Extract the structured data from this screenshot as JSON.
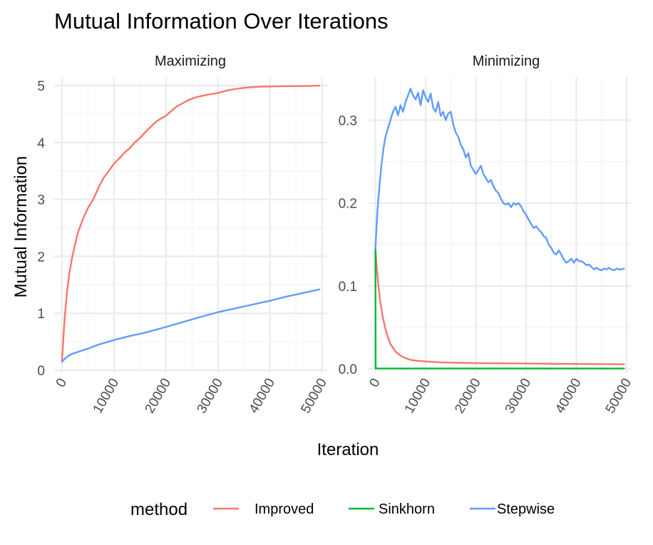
{
  "chart_data": {
    "type": "line",
    "title": "Mutual Information Over Iterations",
    "xlabel": "Iteration",
    "ylabel": "Mutual Information",
    "legend": {
      "title": "method",
      "placement": "bottom",
      "entries": [
        {
          "name": "Improved",
          "color": "#F8766D"
        },
        {
          "name": "Sinkhorn",
          "color": "#00BA38"
        },
        {
          "name": "Stepwise",
          "color": "#619CFF"
        }
      ]
    },
    "grid": true,
    "panels": [
      {
        "label": "Maximizing",
        "xlim": [
          -1500,
          51000
        ],
        "ylim": [
          -0.05,
          5.15
        ],
        "xticks": [
          0,
          10000,
          20000,
          30000,
          40000,
          50000
        ],
        "yticks": [
          0,
          1,
          2,
          3,
          4,
          5
        ],
        "series": [
          {
            "name": "Improved",
            "x": [
              0,
              500,
              1000,
              1500,
              2000,
              3000,
              4000,
              5000,
              6000,
              7000,
              8000,
              9000,
              10000,
              11000,
              12000,
              13000,
              14000,
              15000,
              16000,
              17000,
              18000,
              19000,
              20000,
              21000,
              22000,
              23000,
              24000,
              25000,
              26000,
              27000,
              28000,
              30000,
              32000,
              34000,
              36000,
              38000,
              40000,
              44000,
              48000,
              49500
            ],
            "y": [
              0.15,
              0.9,
              1.4,
              1.75,
              2.0,
              2.4,
              2.65,
              2.85,
              3.0,
              3.2,
              3.38,
              3.5,
              3.63,
              3.72,
              3.82,
              3.9,
              4.0,
              4.08,
              4.18,
              4.27,
              4.36,
              4.42,
              4.47,
              4.55,
              4.63,
              4.68,
              4.73,
              4.77,
              4.8,
              4.82,
              4.84,
              4.87,
              4.92,
              4.95,
              4.97,
              4.98,
              4.985,
              4.99,
              4.995,
              5.0
            ]
          },
          {
            "name": "Stepwise",
            "x": [
              0,
              1000,
              2000,
              3000,
              5000,
              7000,
              10000,
              13000,
              16000,
              20000,
              23000,
              26000,
              30000,
              33000,
              36000,
              40000,
              43000,
              46000,
              49500
            ],
            "y": [
              0.15,
              0.24,
              0.29,
              0.32,
              0.38,
              0.45,
              0.53,
              0.6,
              0.66,
              0.76,
              0.84,
              0.92,
              1.02,
              1.08,
              1.14,
              1.22,
              1.29,
              1.35,
              1.42
            ]
          }
        ]
      },
      {
        "label": "Minimizing",
        "xlim": [
          -1500,
          51000
        ],
        "ylim": [
          -0.005,
          0.352
        ],
        "xticks": [
          0,
          10000,
          20000,
          30000,
          40000,
          50000
        ],
        "yticks": [
          0.0,
          0.1,
          0.2,
          0.3
        ],
        "series": [
          {
            "name": "Improved",
            "x": [
              0,
              300,
              600,
              1000,
              1500,
              2000,
              2500,
              3000,
              4000,
              5000,
              6000,
              7000,
              8000,
              10000,
              13000,
              16000,
              20000,
              25000,
              30000,
              35000,
              40000,
              45000,
              49500
            ],
            "y": [
              0.145,
              0.12,
              0.1,
              0.08,
              0.062,
              0.048,
              0.038,
              0.03,
              0.021,
              0.016,
              0.013,
              0.011,
              0.01,
              0.009,
              0.008,
              0.0075,
              0.007,
              0.0068,
              0.0065,
              0.0062,
              0.006,
              0.0058,
              0.0056
            ]
          },
          {
            "name": "Sinkhorn",
            "x": [
              0,
              40,
              100,
              1000,
              10000,
              30000,
              49500
            ],
            "y": [
              0.145,
              0.0005,
              0.0005,
              0.0005,
              0.0005,
              0.0005,
              0.0005
            ]
          },
          {
            "name": "Stepwise",
            "x": [
              0,
              400,
              800,
              1200,
              1600,
              2000,
              2500,
              3000,
              3500,
              4000,
              4500,
              5000,
              5500,
              6000,
              6500,
              7000,
              7500,
              8000,
              8500,
              9000,
              9500,
              10000,
              10500,
              11000,
              11500,
              12000,
              12500,
              13000,
              13500,
              14000,
              14500,
              15000,
              15500,
              16000,
              16500,
              17000,
              17500,
              18000,
              18500,
              19000,
              19500,
              20000,
              20500,
              21000,
              21500,
              22000,
              22500,
              23000,
              23500,
              24000,
              24500,
              25000,
              25500,
              26000,
              26500,
              27000,
              27500,
              28000,
              28500,
              29000,
              29500,
              30000,
              30500,
              31000,
              31500,
              32000,
              32500,
              33000,
              33500,
              34000,
              34500,
              35000,
              35500,
              36000,
              36500,
              37000,
              37500,
              38000,
              38500,
              39000,
              39500,
              40000,
              40500,
              41000,
              41500,
              42000,
              42500,
              43000,
              43500,
              44000,
              44500,
              45000,
              45500,
              46000,
              46500,
              47000,
              47500,
              48000,
              48500,
              49000,
              49500
            ],
            "y": [
              0.145,
              0.19,
              0.22,
              0.245,
              0.265,
              0.28,
              0.29,
              0.3,
              0.31,
              0.316,
              0.306,
              0.318,
              0.31,
              0.322,
              0.33,
              0.338,
              0.33,
              0.325,
              0.333,
              0.318,
              0.336,
              0.328,
              0.322,
              0.332,
              0.315,
              0.31,
              0.322,
              0.305,
              0.31,
              0.3,
              0.308,
              0.31,
              0.295,
              0.285,
              0.28,
              0.27,
              0.265,
              0.255,
              0.26,
              0.245,
              0.24,
              0.235,
              0.24,
              0.245,
              0.235,
              0.23,
              0.225,
              0.228,
              0.22,
              0.215,
              0.212,
              0.205,
              0.2,
              0.198,
              0.2,
              0.195,
              0.2,
              0.198,
              0.2,
              0.196,
              0.19,
              0.186,
              0.18,
              0.175,
              0.17,
              0.172,
              0.168,
              0.165,
              0.16,
              0.158,
              0.15,
              0.146,
              0.14,
              0.138,
              0.143,
              0.138,
              0.132,
              0.128,
              0.13,
              0.133,
              0.128,
              0.133,
              0.13,
              0.13,
              0.128,
              0.125,
              0.126,
              0.123,
              0.12,
              0.122,
              0.12,
              0.119,
              0.121,
              0.12,
              0.122,
              0.12,
              0.119,
              0.121,
              0.12,
              0.12,
              0.121
            ]
          }
        ]
      }
    ]
  }
}
